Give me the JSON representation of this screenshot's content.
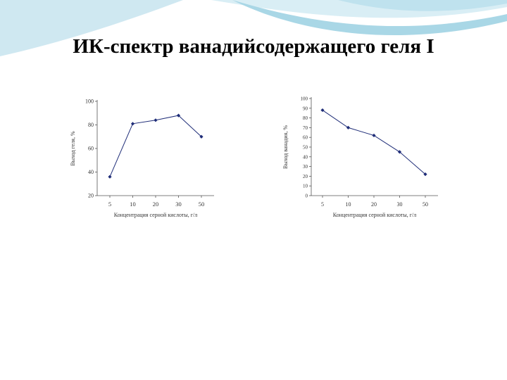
{
  "slide": {
    "title": "ИК-спектр ванадийсодержащего геля I"
  },
  "colors": {
    "swoosh_light": "#d9eef5",
    "swoosh_mid": "#a9d7e6",
    "series": "#1f2d78"
  },
  "chart_data": [
    {
      "type": "line",
      "title": "",
      "xlabel": "Концентрация серной кислоты, г/л",
      "ylabel": "Выход геля, %",
      "categories": [
        "5",
        "10",
        "20",
        "30",
        "50"
      ],
      "series": [
        {
          "values": [
            36,
            81,
            84,
            88,
            70
          ]
        }
      ],
      "yticks": [
        "20",
        "40",
        "60",
        "80",
        "100"
      ],
      "ylim": [
        20,
        100
      ],
      "grid": false
    },
    {
      "type": "line",
      "title": "",
      "xlabel": "Концентрация серной кислоты, г/л",
      "ylabel": "Выход ванадия, %",
      "categories": [
        "5",
        "10",
        "20",
        "30",
        "50"
      ],
      "series": [
        {
          "values": [
            88,
            70,
            62,
            45,
            22
          ]
        }
      ],
      "yticks": [
        "0",
        "10",
        "20",
        "30",
        "40",
        "50",
        "60",
        "70",
        "80",
        "90",
        "100"
      ],
      "ylim": [
        0,
        100
      ],
      "grid": false
    }
  ]
}
